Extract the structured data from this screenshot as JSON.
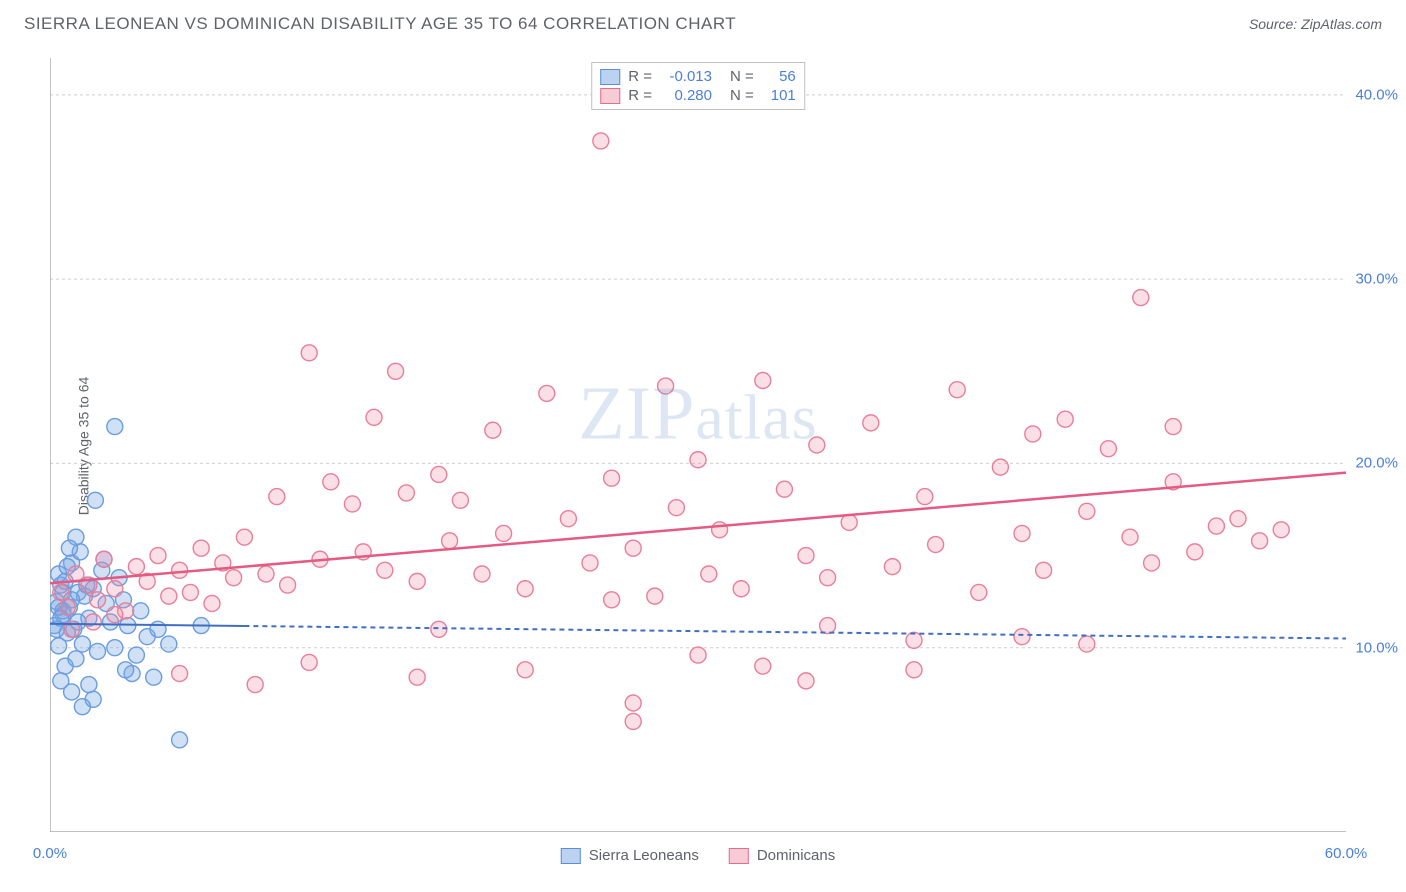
{
  "header": {
    "title": "SIERRA LEONEAN VS DOMINICAN DISABILITY AGE 35 TO 64 CORRELATION CHART",
    "source": "Source: ZipAtlas.com"
  },
  "y_axis_label": "Disability Age 35 to 64",
  "watermark": "ZIPatlas",
  "chart": {
    "type": "scatter",
    "background_color": "#ffffff",
    "grid_color": "#cfcfcf",
    "axis_color": "#999999",
    "tick_label_color": "#4a7fd8",
    "label_fontsize": 14,
    "tick_fontsize": 15,
    "xlim": [
      0,
      60
    ],
    "ylim": [
      0,
      42
    ],
    "x_ticks": [
      0,
      60
    ],
    "x_tick_labels": [
      "0.0%",
      "60.0%"
    ],
    "x_minor_ticks": [
      5,
      10,
      15,
      20,
      25,
      30,
      35,
      40,
      45,
      50,
      55
    ],
    "y_ticks": [
      10,
      20,
      30,
      40
    ],
    "y_tick_labels": [
      "10.0%",
      "20.0%",
      "30.0%",
      "40.0%"
    ],
    "marker_radius": 8,
    "marker_stroke_width": 1.4,
    "series": [
      {
        "name": "Sierra Leoneans",
        "fill_color": "rgba(120,165,225,0.35)",
        "stroke_color": "#6a9de0",
        "legend_fill": "rgba(120,165,225,0.5)",
        "legend_stroke": "#5a8fd6",
        "R": "-0.013",
        "N": "56",
        "trend": {
          "x1": 0,
          "y1": 11.3,
          "x2": 60,
          "y2": 10.5,
          "color": "#3f6fc2",
          "width": 2,
          "dash": "5 4",
          "solid_until_x": 9
        },
        "points": [
          [
            0.2,
            11.2
          ],
          [
            0.3,
            12.5
          ],
          [
            0.4,
            10.1
          ],
          [
            0.5,
            13.4
          ],
          [
            0.6,
            11.8
          ],
          [
            0.7,
            9.0
          ],
          [
            0.4,
            14.0
          ],
          [
            0.5,
            8.2
          ],
          [
            0.6,
            12.0
          ],
          [
            0.7,
            13.6
          ],
          [
            0.8,
            10.8
          ],
          [
            0.9,
            12.2
          ],
          [
            1.0,
            14.6
          ],
          [
            1.1,
            11.0
          ],
          [
            1.2,
            9.4
          ],
          [
            1.3,
            13.0
          ],
          [
            1.4,
            15.2
          ],
          [
            1.5,
            10.2
          ],
          [
            1.6,
            12.8
          ],
          [
            1.8,
            11.6
          ],
          [
            2.0,
            13.2
          ],
          [
            2.1,
            18.0
          ],
          [
            2.2,
            9.8
          ],
          [
            2.4,
            14.2
          ],
          [
            2.6,
            12.4
          ],
          [
            2.8,
            11.4
          ],
          [
            3.0,
            10.0
          ],
          [
            3.2,
            13.8
          ],
          [
            3.4,
            12.6
          ],
          [
            3.6,
            11.2
          ],
          [
            3.8,
            8.6
          ],
          [
            4.0,
            9.6
          ],
          [
            4.2,
            12.0
          ],
          [
            4.5,
            10.6
          ],
          [
            3.0,
            22.0
          ],
          [
            2.0,
            7.2
          ],
          [
            1.0,
            7.6
          ],
          [
            1.2,
            16.0
          ],
          [
            1.5,
            6.8
          ],
          [
            1.8,
            8.0
          ],
          [
            0.9,
            15.4
          ],
          [
            0.3,
            11.0
          ],
          [
            0.4,
            12.2
          ],
          [
            0.5,
            11.6
          ],
          [
            0.6,
            13.0
          ],
          [
            0.8,
            14.4
          ],
          [
            1.0,
            12.6
          ],
          [
            1.3,
            11.4
          ],
          [
            5.0,
            11.0
          ],
          [
            5.5,
            10.2
          ],
          [
            6.0,
            5.0
          ],
          [
            7.0,
            11.2
          ],
          [
            4.8,
            8.4
          ],
          [
            2.5,
            14.8
          ],
          [
            3.5,
            8.8
          ],
          [
            1.7,
            13.4
          ]
        ]
      },
      {
        "name": "Dominicans",
        "fill_color": "rgba(240,140,165,0.28)",
        "stroke_color": "#e87f9a",
        "legend_fill": "rgba(240,140,165,0.45)",
        "legend_stroke": "#e06f8c",
        "R": "0.280",
        "N": "101",
        "trend": {
          "x1": 0,
          "y1": 13.5,
          "x2": 60,
          "y2": 19.5,
          "color": "#e45a82",
          "width": 2.5,
          "dash": null,
          "solid_until_x": 60
        },
        "points": [
          [
            0.5,
            13.0
          ],
          [
            0.8,
            12.2
          ],
          [
            1.2,
            14.0
          ],
          [
            1.8,
            13.4
          ],
          [
            2.2,
            12.6
          ],
          [
            2.5,
            14.8
          ],
          [
            3.0,
            13.2
          ],
          [
            3.5,
            12.0
          ],
          [
            4.0,
            14.4
          ],
          [
            4.5,
            13.6
          ],
          [
            5.0,
            15.0
          ],
          [
            5.5,
            12.8
          ],
          [
            6.0,
            14.2
          ],
          [
            6.5,
            13.0
          ],
          [
            7.0,
            15.4
          ],
          [
            7.5,
            12.4
          ],
          [
            8.0,
            14.6
          ],
          [
            8.5,
            13.8
          ],
          [
            9.0,
            16.0
          ],
          [
            10.0,
            14.0
          ],
          [
            10.5,
            18.2
          ],
          [
            11.0,
            13.4
          ],
          [
            12.0,
            26.0
          ],
          [
            12.5,
            14.8
          ],
          [
            13.0,
            19.0
          ],
          [
            14.0,
            17.8
          ],
          [
            14.5,
            15.2
          ],
          [
            15.0,
            22.5
          ],
          [
            15.5,
            14.2
          ],
          [
            16.0,
            25.0
          ],
          [
            16.5,
            18.4
          ],
          [
            17.0,
            13.6
          ],
          [
            18.0,
            19.4
          ],
          [
            18.5,
            15.8
          ],
          [
            19.0,
            18.0
          ],
          [
            20.0,
            14.0
          ],
          [
            20.5,
            21.8
          ],
          [
            21.0,
            16.2
          ],
          [
            22.0,
            13.2
          ],
          [
            23.0,
            23.8
          ],
          [
            24.0,
            17.0
          ],
          [
            25.0,
            14.6
          ],
          [
            25.5,
            37.5
          ],
          [
            26.0,
            19.2
          ],
          [
            27.0,
            15.4
          ],
          [
            28.0,
            12.8
          ],
          [
            28.5,
            24.2
          ],
          [
            29.0,
            17.6
          ],
          [
            30.0,
            20.2
          ],
          [
            30.5,
            14.0
          ],
          [
            31.0,
            16.4
          ],
          [
            32.0,
            13.2
          ],
          [
            33.0,
            24.5
          ],
          [
            34.0,
            18.6
          ],
          [
            35.0,
            15.0
          ],
          [
            35.5,
            21.0
          ],
          [
            36.0,
            13.8
          ],
          [
            37.0,
            16.8
          ],
          [
            38.0,
            22.2
          ],
          [
            39.0,
            14.4
          ],
          [
            40.0,
            10.4
          ],
          [
            40.5,
            18.2
          ],
          [
            41.0,
            15.6
          ],
          [
            42.0,
            24.0
          ],
          [
            43.0,
            13.0
          ],
          [
            44.0,
            19.8
          ],
          [
            45.0,
            16.2
          ],
          [
            45.5,
            21.6
          ],
          [
            46.0,
            14.2
          ],
          [
            47.0,
            22.4
          ],
          [
            48.0,
            17.4
          ],
          [
            49.0,
            20.8
          ],
          [
            50.0,
            16.0
          ],
          [
            50.5,
            29.0
          ],
          [
            51.0,
            14.6
          ],
          [
            52.0,
            19.0
          ],
          [
            53.0,
            15.2
          ],
          [
            54.0,
            16.6
          ],
          [
            55.0,
            17.0
          ],
          [
            56.0,
            15.8
          ],
          [
            57.0,
            16.4
          ],
          [
            6.0,
            8.6
          ],
          [
            9.5,
            8.0
          ],
          [
            12.0,
            9.2
          ],
          [
            17.0,
            8.4
          ],
          [
            22.0,
            8.8
          ],
          [
            27.0,
            7.0
          ],
          [
            30.0,
            9.6
          ],
          [
            35.0,
            8.2
          ],
          [
            40.0,
            8.8
          ],
          [
            27.0,
            6.0
          ],
          [
            33.0,
            9.0
          ],
          [
            1.0,
            11.0
          ],
          [
            2.0,
            11.4
          ],
          [
            3.0,
            11.8
          ],
          [
            45.0,
            10.6
          ],
          [
            48.0,
            10.2
          ],
          [
            52.0,
            22.0
          ],
          [
            26.0,
            12.6
          ],
          [
            18.0,
            11.0
          ],
          [
            36.0,
            11.2
          ]
        ]
      }
    ]
  },
  "corr_legend_labels": {
    "R": "R =",
    "N": "N ="
  },
  "series_legend": {
    "items": [
      "Sierra Leoneans",
      "Dominicans"
    ]
  }
}
